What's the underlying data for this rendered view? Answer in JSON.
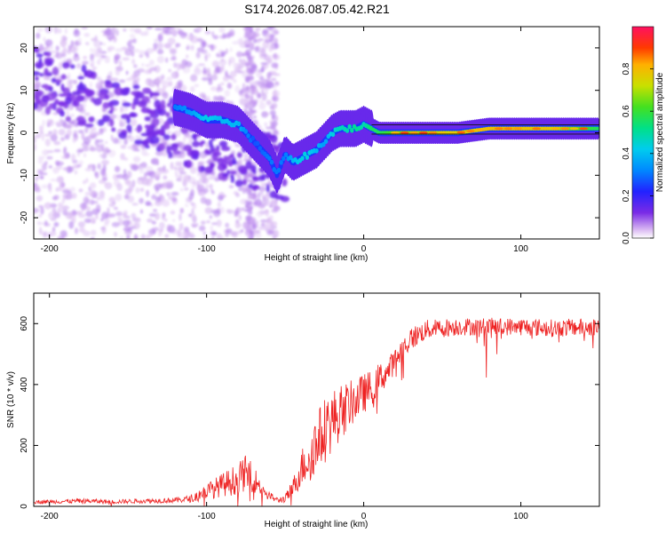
{
  "title": "S174.2026.087.05.42.R21",
  "chart_data": [
    {
      "type": "heatmap",
      "xlabel": "Height of straight line (km)",
      "ylabel": "Frequency (Hz)",
      "xlim": [
        -210,
        150
      ],
      "ylim": [
        -25,
        25
      ],
      "x_ticks": [
        -200,
        -100,
        0,
        100
      ],
      "x_tick_labels": [
        "-200",
        "-100",
        "0",
        "100"
      ],
      "y_ticks": [
        -20,
        -10,
        0,
        10,
        20
      ],
      "y_tick_labels": [
        "-20",
        "-10",
        "0",
        "10",
        "20"
      ],
      "colorbar": {
        "label": "Normalized spectral amplitude",
        "range": [
          0,
          1
        ],
        "ticks": [
          0.0,
          0.2,
          0.4,
          0.6,
          0.8
        ],
        "tick_labels": [
          "0.0",
          "0.2",
          "0.4",
          "0.6",
          "0.8"
        ],
        "colormap": "rainbow (purple to red)"
      },
      "ridge": {
        "x": [
          -120,
          -110,
          -100,
          -90,
          -80,
          -70,
          -60,
          -55,
          -50,
          -45,
          -40,
          -35,
          -30,
          -25,
          -20,
          -15,
          -10,
          -5,
          0,
          5,
          10,
          20,
          40,
          60,
          80,
          100,
          120,
          150
        ],
        "frequency": [
          6,
          5,
          3,
          3,
          2,
          -2,
          -6,
          -10,
          -5,
          -7,
          -6,
          -5,
          -4,
          -2,
          0,
          1,
          1,
          1,
          2,
          1,
          0,
          0,
          0,
          0,
          1,
          1,
          1,
          1
        ],
        "amplitude": [
          0.3,
          0.35,
          0.45,
          0.4,
          0.4,
          0.25,
          0.3,
          0.3,
          0.3,
          0.4,
          0.45,
          0.45,
          0.4,
          0.35,
          0.45,
          0.5,
          0.5,
          0.55,
          0.5,
          0.6,
          0.6,
          0.7,
          0.75,
          0.8,
          0.85,
          0.85,
          0.8,
          0.6
        ]
      },
      "noise_note": "scattered low amplitude (0.0-0.1) energy across -25 to 25 Hz for heights below -50 km"
    },
    {
      "type": "line",
      "xlabel": "Height of straight line (km)",
      "ylabel": "SNR (10 * v/v)",
      "xlim": [
        -210,
        150
      ],
      "ylim": [
        0,
        700
      ],
      "x_ticks": [
        -200,
        -100,
        0,
        100
      ],
      "x_tick_labels": [
        "-200",
        "-100",
        "0",
        "100"
      ],
      "y_ticks": [
        0,
        200,
        400,
        600
      ],
      "y_tick_labels": [
        "0",
        "200",
        "400",
        "600"
      ],
      "series": [
        {
          "name": "SNR",
          "color": "#ee2222",
          "x": [
            -210,
            -200,
            -180,
            -160,
            -140,
            -120,
            -110,
            -100,
            -90,
            -80,
            -75,
            -70,
            -65,
            -60,
            -55,
            -50,
            -45,
            -40,
            -35,
            -30,
            -25,
            -20,
            -15,
            -10,
            -5,
            0,
            5,
            10,
            15,
            20,
            25,
            30,
            40,
            60,
            80,
            100,
            120,
            150
          ],
          "baseline": [
            15,
            15,
            18,
            15,
            18,
            20,
            25,
            50,
            70,
            90,
            110,
            90,
            60,
            35,
            20,
            25,
            60,
            120,
            170,
            210,
            250,
            280,
            310,
            330,
            350,
            370,
            390,
            420,
            440,
            480,
            520,
            550,
            580,
            590,
            590,
            590,
            585,
            590
          ],
          "spread": [
            10,
            10,
            12,
            10,
            12,
            14,
            18,
            40,
            60,
            80,
            90,
            70,
            40,
            20,
            15,
            20,
            50,
            90,
            140,
            150,
            170,
            160,
            140,
            120,
            110,
            100,
            90,
            80,
            70,
            60,
            60,
            60,
            50,
            45,
            45,
            45,
            45,
            45
          ]
        }
      ]
    }
  ]
}
